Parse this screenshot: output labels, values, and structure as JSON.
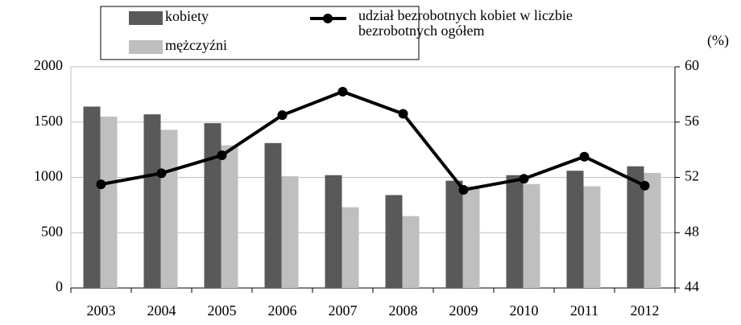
{
  "chart_data": {
    "type": "bar",
    "categories": [
      "2003",
      "2004",
      "2005",
      "2006",
      "2007",
      "2008",
      "2009",
      "2010",
      "2011",
      "2012"
    ],
    "series": [
      {
        "name": "kobiety",
        "color": "#595959",
        "values": [
          1640,
          1570,
          1490,
          1310,
          1020,
          840,
          970,
          1020,
          1060,
          1100
        ]
      },
      {
        "name": "mężczyźni",
        "color": "#bfbfbf",
        "values": [
          1550,
          1430,
          1290,
          1010,
          730,
          650,
          920,
          940,
          920,
          1040
        ]
      },
      {
        "name": "udział bezrobotnych kobiet w liczbie bezrobotnych ogółem",
        "color": "#000000",
        "type": "line",
        "axis": "y2",
        "values": [
          51.5,
          52.3,
          53.6,
          56.5,
          58.2,
          56.6,
          51.1,
          51.9,
          53.5,
          51.4
        ]
      }
    ],
    "ylim": [
      0,
      2000
    ],
    "yticks": [
      0,
      500,
      1000,
      1500,
      2000
    ],
    "y2lim": [
      44,
      60
    ],
    "y2ticks": [
      44,
      48,
      52,
      56,
      60
    ],
    "y2label": "(%)",
    "grid": true
  }
}
